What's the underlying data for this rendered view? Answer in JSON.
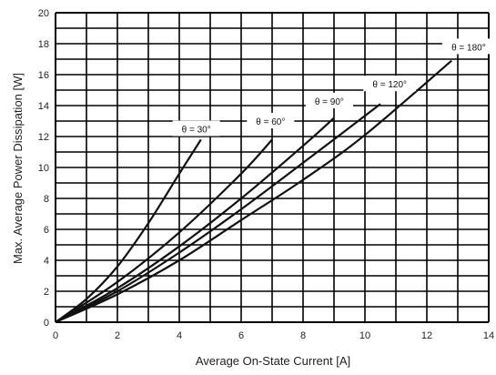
{
  "chart_data": {
    "type": "line",
    "title": "",
    "xlabel": "Average On-State Current [A]",
    "ylabel": "Max. Average Power Dissipation [W]",
    "xlim": [
      0,
      14
    ],
    "ylim": [
      0,
      20
    ],
    "x_ticks": [
      "0",
      "2",
      "4",
      "6",
      "8",
      "10",
      "12",
      "14"
    ],
    "y_ticks": [
      "0",
      "2",
      "4",
      "6",
      "8",
      "10",
      "12",
      "14",
      "16",
      "18",
      "20"
    ],
    "grid": true,
    "series": [
      {
        "name": "θ = 30°",
        "x": [
          0,
          1,
          2,
          3,
          4,
          4.7
        ],
        "y": [
          0,
          1.5,
          3.6,
          6.4,
          9.6,
          11.8
        ]
      },
      {
        "name": "θ = 60°",
        "x": [
          0,
          2,
          4,
          6,
          7
        ],
        "y": [
          0,
          2.6,
          5.8,
          9.6,
          11.8
        ]
      },
      {
        "name": "θ = 90°",
        "x": [
          0,
          2,
          4,
          6,
          8,
          9
        ],
        "y": [
          0,
          2.2,
          4.9,
          8.0,
          11.4,
          13.2
        ]
      },
      {
        "name": "θ = 120°",
        "x": [
          0,
          2,
          4,
          6,
          8,
          10.5
        ],
        "y": [
          0,
          2.0,
          4.5,
          7.3,
          10.3,
          14.1
        ]
      },
      {
        "name": "θ = 180°",
        "x": [
          0,
          2,
          4,
          6,
          8,
          10,
          12.8
        ],
        "y": [
          0,
          1.8,
          4.0,
          6.6,
          9.2,
          12.1,
          16.9
        ]
      }
    ]
  }
}
